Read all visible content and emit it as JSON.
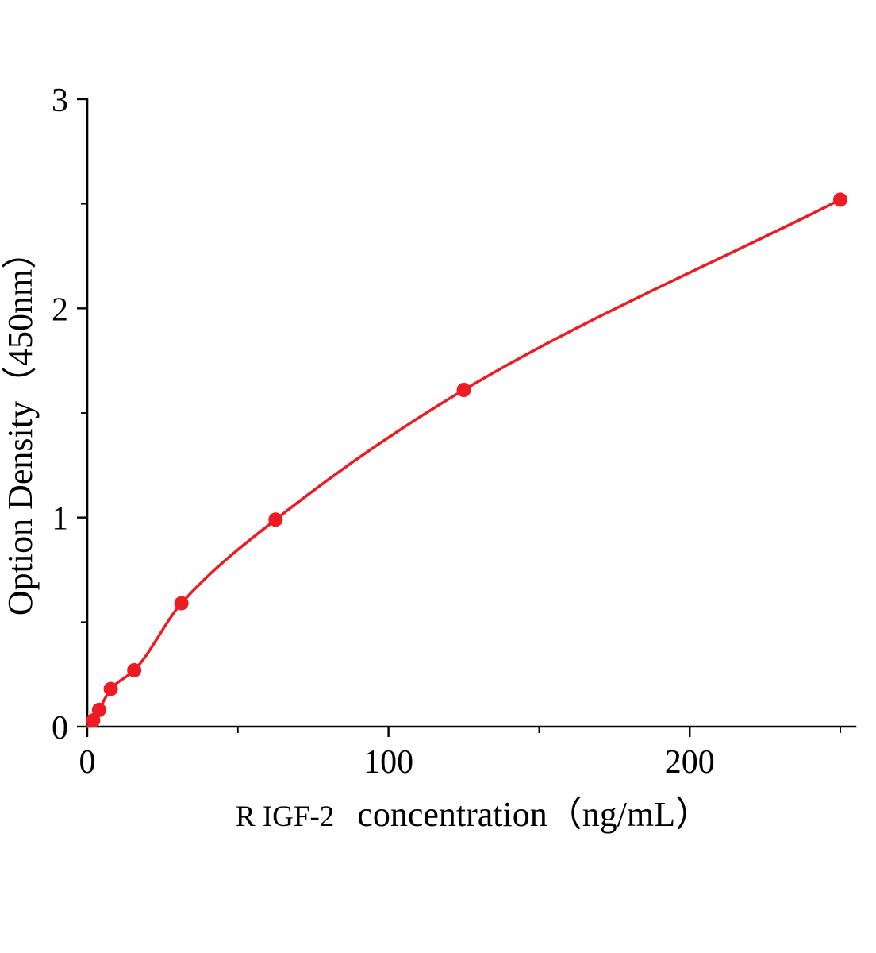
{
  "figure": {
    "background_color": "#ffffff",
    "description": "ELISA standard curve"
  },
  "chart_data": {
    "type": "line",
    "title": "",
    "xlabel_prefix": "R IGF-2",
    "xlabel_main": "concentration（ng/mL）",
    "ylabel": "Option Density（450nm）",
    "curve_start": {
      "x": 0,
      "y": 0
    },
    "x": [
      1.95,
      3.9,
      7.8,
      15.6,
      31.25,
      62.5,
      125,
      250
    ],
    "y": [
      0.03,
      0.08,
      0.18,
      0.27,
      0.59,
      0.99,
      1.61,
      2.52
    ],
    "xlim": [
      0,
      255
    ],
    "ylim": [
      0,
      3
    ],
    "x_major_ticks": [
      0,
      100,
      200
    ],
    "x_minor_ticks": [
      50,
      150,
      250
    ],
    "y_major_ticks": [
      0,
      1,
      2,
      3
    ],
    "y_minor_ticks": [
      0.5,
      1.5,
      2.5
    ],
    "line_color": "#ed1b23",
    "marker_color": "#ed1b23",
    "marker_radius": 9,
    "axis_color": "#000000",
    "grid": false,
    "legend": null
  }
}
